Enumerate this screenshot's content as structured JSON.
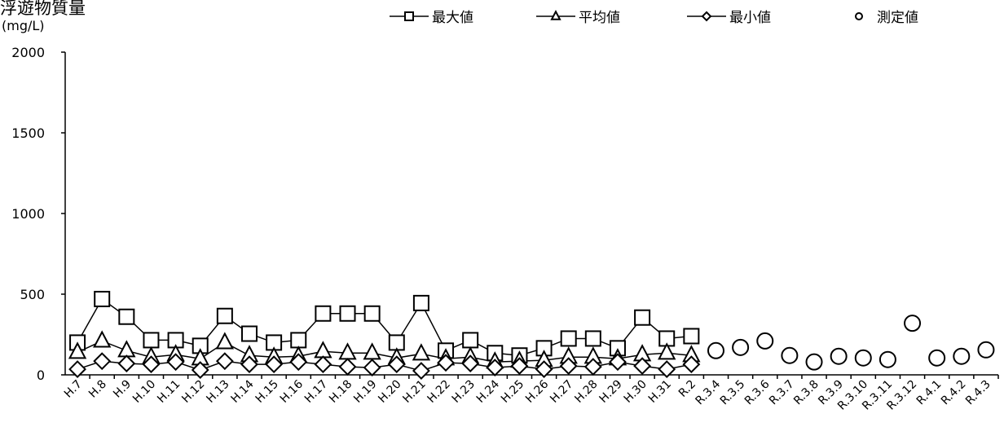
{
  "chart_data": {
    "type": "line",
    "title": "浮遊物質量",
    "ylabel": "(mg/L)",
    "ylim": [
      0,
      2000
    ],
    "yticks": [
      0,
      500,
      1000,
      1500,
      2000
    ],
    "legend_position": "top",
    "categories": [
      "H.7",
      "H.8",
      "H.9",
      "H.10",
      "H.11",
      "H.12",
      "H.13",
      "H.14",
      "H.15",
      "H.16",
      "H.17",
      "H.18",
      "H.19",
      "H.20",
      "H.21",
      "H.22",
      "H.23",
      "H.24",
      "H.25",
      "H.26",
      "H.27",
      "H.28",
      "H.29",
      "H.30",
      "H.31",
      "R.2",
      "R.3.4",
      "R.3.5",
      "R.3.6",
      "R.3.7",
      "R.3.8",
      "R.3.9",
      "R.3.10",
      "R.3.11",
      "R.3.12",
      "R.4.1",
      "R.4.2",
      "R.4.3"
    ],
    "series": [
      {
        "name": "最大値",
        "marker": "square",
        "line": true,
        "values": [
          200,
          470,
          360,
          215,
          215,
          180,
          365,
          255,
          200,
          215,
          380,
          380,
          380,
          200,
          445,
          150,
          215,
          135,
          120,
          165,
          225,
          225,
          165,
          355,
          225,
          240,
          null,
          null,
          null,
          null,
          null,
          null,
          null,
          null,
          null,
          null,
          null,
          null
        ]
      },
      {
        "name": "平均値",
        "marker": "triangle",
        "line": true,
        "values": [
          140,
          210,
          150,
          110,
          125,
          100,
          200,
          120,
          110,
          115,
          145,
          135,
          135,
          105,
          130,
          100,
          110,
          80,
          85,
          90,
          110,
          110,
          100,
          125,
          135,
          120,
          null,
          null,
          null,
          null,
          null,
          null,
          null,
          null,
          null,
          null,
          null,
          null
        ]
      },
      {
        "name": "最小値",
        "marker": "diamond",
        "line": true,
        "values": [
          35,
          85,
          70,
          65,
          80,
          30,
          85,
          65,
          65,
          80,
          65,
          50,
          45,
          65,
          25,
          75,
          70,
          45,
          55,
          35,
          55,
          50,
          80,
          55,
          35,
          65,
          null,
          null,
          null,
          null,
          null,
          null,
          null,
          null,
          null,
          null,
          null,
          null
        ]
      },
      {
        "name": "測定値",
        "marker": "circle",
        "line": false,
        "values": [
          null,
          null,
          null,
          null,
          null,
          null,
          null,
          null,
          null,
          null,
          null,
          null,
          null,
          null,
          null,
          null,
          null,
          null,
          null,
          null,
          null,
          null,
          null,
          null,
          null,
          null,
          150,
          170,
          210,
          120,
          80,
          115,
          105,
          95,
          320,
          105,
          115,
          155
        ]
      }
    ]
  }
}
